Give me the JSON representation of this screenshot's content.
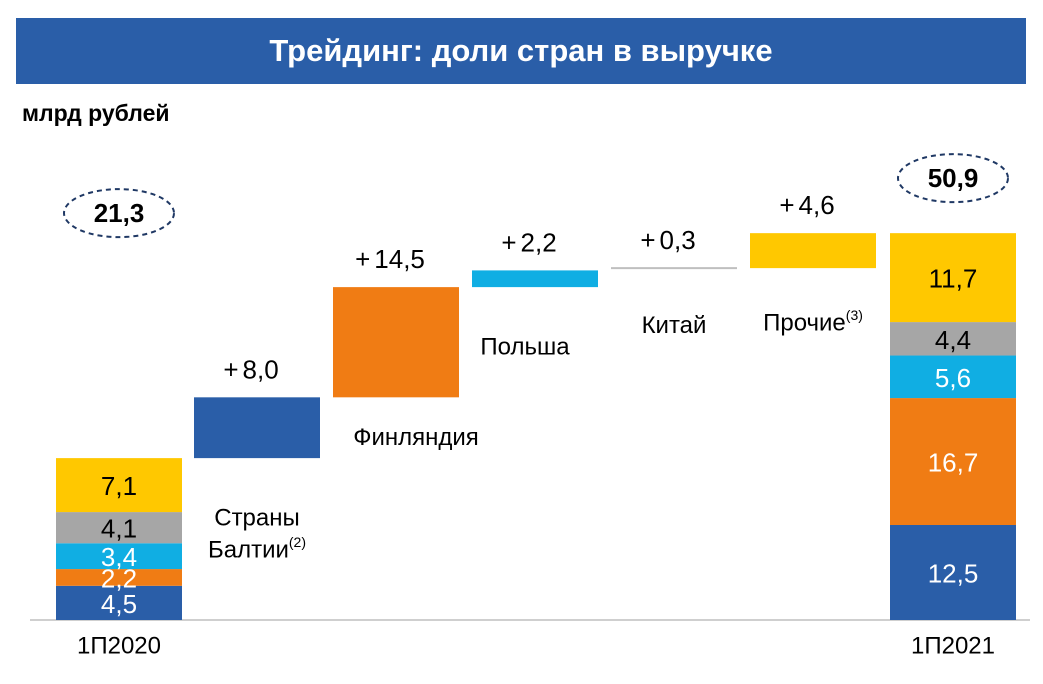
{
  "title": "Трейдинг: доли стран в выручке",
  "unit": "млрд рублей",
  "colors": {
    "blue": "#2a5ea8",
    "orange": "#f07c14",
    "cyan": "#10aee3",
    "gray": "#a6a6a6",
    "yellow": "#ffc800",
    "china": "#bfbfbf",
    "outline": "#1f3864"
  },
  "chart_data": {
    "type": "bar",
    "subtype": "waterfall",
    "title": "Трейдинг: доли стран в выручке",
    "ylabel": "млрд рублей",
    "start": {
      "label": "1П2020",
      "total": "21,3",
      "segments": [
        {
          "value": 4.5,
          "label": "4,5",
          "color": "blue"
        },
        {
          "value": 2.2,
          "label": "2,2",
          "color": "orange"
        },
        {
          "value": 3.4,
          "label": "3,4",
          "color": "cyan"
        },
        {
          "value": 4.1,
          "label": "4,1",
          "color": "gray"
        },
        {
          "value": 7.1,
          "label": "7,1",
          "color": "yellow"
        }
      ]
    },
    "steps": [
      {
        "category": "Страны Балтии",
        "sup": "(2)",
        "value": 8.0,
        "label": "8,0",
        "color": "blue"
      },
      {
        "category": "Финляндия",
        "sup": "",
        "value": 14.5,
        "label": "14,5",
        "color": "orange"
      },
      {
        "category": "Польша",
        "sup": "",
        "value": 2.2,
        "label": "2,2",
        "color": "cyan"
      },
      {
        "category": "Китай",
        "sup": "",
        "value": 0.3,
        "label": "0,3",
        "color": "china"
      },
      {
        "category": "Прочие",
        "sup": "(3)",
        "value": 4.6,
        "label": "4,6",
        "color": "yellow"
      }
    ],
    "end": {
      "label": "1П2021",
      "total": "50,9",
      "segments": [
        {
          "value": 12.5,
          "label": "12,5",
          "color": "blue"
        },
        {
          "value": 16.7,
          "label": "16,7",
          "color": "orange"
        },
        {
          "value": 5.6,
          "label": "5,6",
          "color": "cyan"
        },
        {
          "value": 4.4,
          "label": "4,4",
          "color": "gray"
        },
        {
          "value": 11.7,
          "label": "11,7",
          "color": "yellow"
        }
      ]
    },
    "ylim": [
      0,
      52
    ],
    "grid": false,
    "legend": "none"
  }
}
